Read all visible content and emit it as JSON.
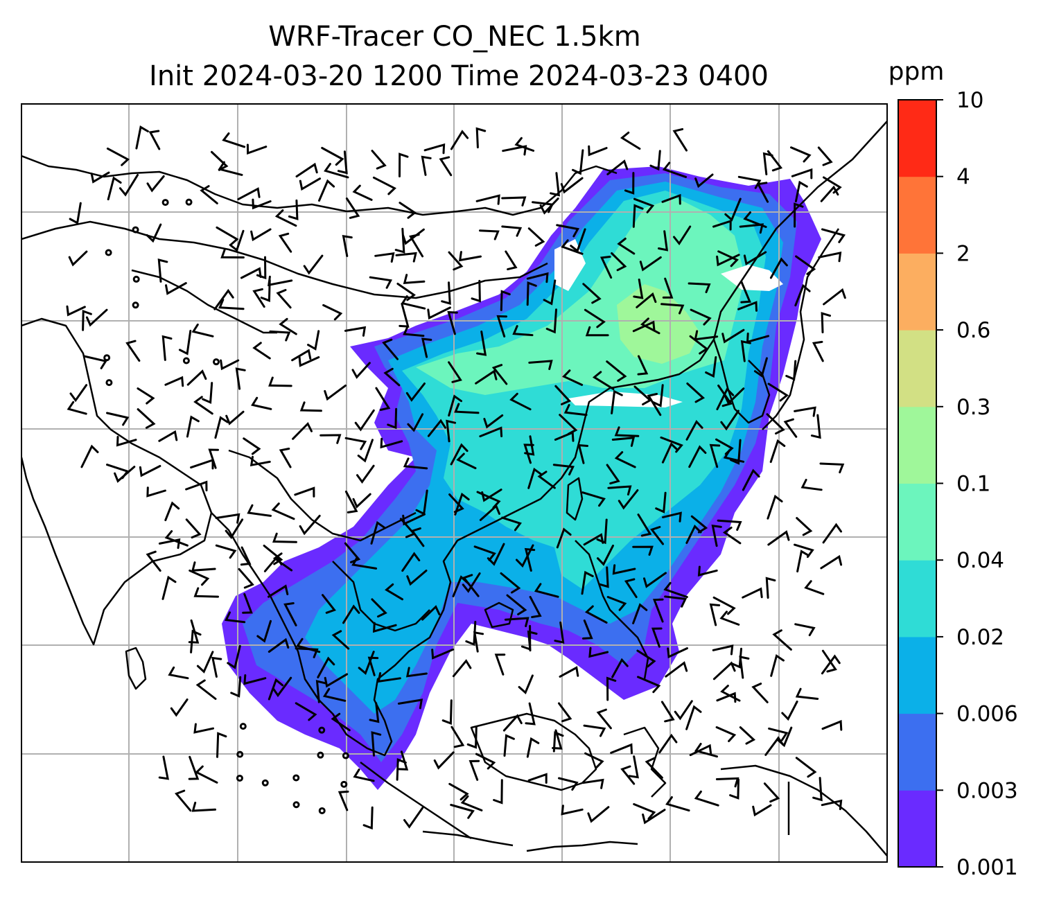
{
  "title": {
    "line1": "WRF-Tracer CO_NEC 1.5km",
    "line2": "Init 2024-03-20 1200 Time 2024-03-23 0400"
  },
  "colorbar": {
    "unit": "ppm",
    "ticks": [
      "0.001",
      "0.003",
      "0.006",
      "0.02",
      "0.04",
      "0.1",
      "0.3",
      "0.6",
      "2",
      "4",
      "10"
    ],
    "colors": [
      "#6a2bff",
      "#3c6ff0",
      "#0bb0e8",
      "#2fdcd6",
      "#6cf5bd",
      "#9ff79a",
      "#d2e084",
      "#fcae60",
      "#ff7438",
      "#ff2a16"
    ]
  },
  "map": {
    "gridlines": true,
    "plume_colors": {
      "outer": "#6a2bff",
      "low": "#3c6ff0",
      "mid": "#0bb0e8",
      "mid_high": "#2fdcd6",
      "high": "#6cf5bd",
      "peak": "#9ff79a"
    }
  }
}
